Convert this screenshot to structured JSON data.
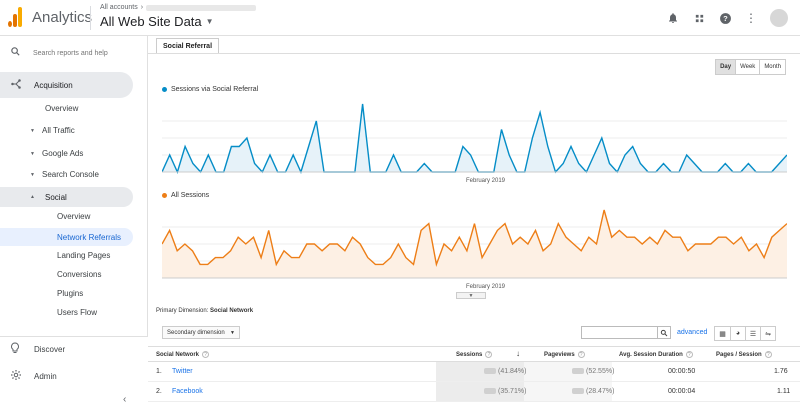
{
  "header": {
    "app_title": "Analytics",
    "breadcrumb_label": "All accounts",
    "property": "All Web Site Data",
    "icons": [
      "bell-icon",
      "apps-icon",
      "help-icon",
      "more-vert-icon"
    ]
  },
  "sidebar": {
    "search_placeholder": "Search reports and help",
    "acquisition": "Acquisition",
    "items": {
      "overview": "Overview",
      "all_traffic": "All Traffic",
      "google_ads": "Google Ads",
      "search_console": "Search Console",
      "social": "Social",
      "social_overview": "Overview",
      "network_referrals": "Network Referrals",
      "landing_pages": "Landing Pages",
      "conversions": "Conversions",
      "plugins": "Plugins",
      "users_flow": "Users Flow"
    },
    "discover": "Discover",
    "admin": "Admin"
  },
  "main": {
    "tab": "Social Referral",
    "interval": [
      "Day",
      "Week",
      "Month"
    ],
    "chart1_legend": "Sessions via Social Referral",
    "chart2_legend": "All Sessions",
    "month_label": "February 2019",
    "primary_dimension_label": "Primary Dimension:",
    "primary_dimension_value": "Social Network",
    "secondary_dimension": "Secondary dimension",
    "advanced": "advanced"
  },
  "table": {
    "columns": [
      "Social Network",
      "Sessions",
      "Pageviews",
      "Avg. Session Duration",
      "Pages / Session"
    ],
    "rows": [
      {
        "num": "1.",
        "network": "Twitter",
        "sessions_pct": "(41.84%)",
        "pageviews_pct": "(52.55%)",
        "duration": "00:00:50",
        "pages": "1.76"
      },
      {
        "num": "2.",
        "network": "Facebook",
        "sessions_pct": "(35.71%)",
        "pageviews_pct": "(28.47%)",
        "duration": "00:00:04",
        "pages": "1.11"
      }
    ]
  },
  "chart_data": [
    {
      "type": "area",
      "series": [
        {
          "name": "Sessions via Social Referral",
          "values": [
            0,
            2,
            0,
            3,
            1,
            0,
            2,
            0,
            0,
            3,
            3,
            4,
            1,
            0,
            2,
            0,
            0,
            2,
            0,
            3,
            6,
            0,
            0,
            0,
            0,
            0,
            8,
            0,
            0,
            0,
            2,
            0,
            0,
            0,
            1,
            0,
            0,
            0,
            0,
            3,
            2,
            0,
            0,
            0,
            5,
            2,
            0,
            0,
            4,
            7,
            3,
            0,
            1,
            3,
            1,
            0,
            2,
            4,
            1,
            0,
            2,
            3,
            1,
            0,
            0,
            1,
            0,
            0,
            2,
            1,
            0,
            0,
            0,
            1,
            0,
            0,
            1,
            0,
            0,
            0,
            1,
            2
          ]
        }
      ],
      "colors": {
        "line": "#058dc7",
        "fill": "#e6f2f9"
      },
      "xlabel": "February 2019"
    },
    {
      "type": "area",
      "series": [
        {
          "name": "All Sessions",
          "values": [
            5,
            7,
            4,
            5,
            4,
            2,
            2,
            3,
            3,
            4,
            6,
            5,
            6,
            3,
            7,
            2,
            4,
            3,
            3,
            5,
            5,
            4,
            5,
            5,
            4,
            6,
            5,
            3,
            2,
            2,
            3,
            5,
            3,
            2,
            7,
            8,
            2,
            5,
            4,
            6,
            4,
            8,
            3,
            5,
            7,
            8,
            5,
            6,
            5,
            7,
            4,
            5,
            8,
            6,
            5,
            4,
            6,
            5,
            10,
            6,
            7,
            6,
            6,
            5,
            6,
            5,
            7,
            6,
            6,
            4,
            5,
            5,
            5,
            6,
            6,
            5,
            6,
            4,
            5,
            3,
            6,
            7,
            8
          ]
        }
      ],
      "colors": {
        "line": "#ed7e17",
        "fill": "#fdf0e4"
      },
      "xlabel": "February 2019"
    }
  ]
}
